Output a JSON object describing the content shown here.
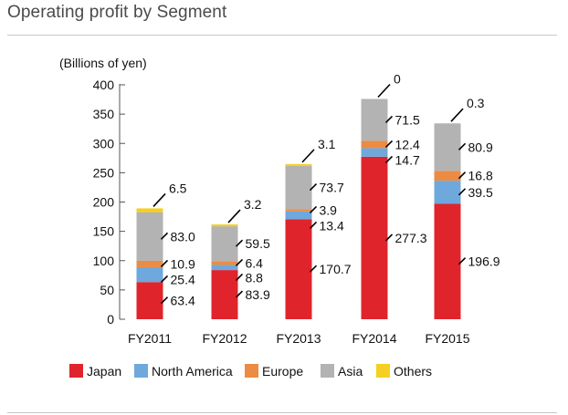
{
  "title": "Operating profit by Segment",
  "colors": {
    "Japan": "#e0242b",
    "North America": "#6fa8dc",
    "Europe": "#ec8b43",
    "Asia": "#b3b3b3",
    "Others": "#f5d020"
  },
  "chart_data": {
    "type": "bar",
    "stacked": true,
    "title": "Operating profit by Segment",
    "ylabel": "(Billions of yen)",
    "xlabel": "",
    "ylim": [
      0,
      400
    ],
    "yticks": [
      0,
      50,
      100,
      150,
      200,
      250,
      300,
      350,
      400
    ],
    "categories": [
      "FY2011",
      "FY2012",
      "FY2013",
      "FY2014",
      "FY2015"
    ],
    "series": [
      {
        "name": "Japan",
        "values": [
          63.4,
          83.9,
          170.7,
          277.3,
          196.9
        ]
      },
      {
        "name": "North America",
        "values": [
          25.4,
          8.8,
          13.4,
          14.7,
          39.5
        ]
      },
      {
        "name": "Europe",
        "values": [
          10.9,
          6.4,
          3.9,
          12.4,
          16.8
        ]
      },
      {
        "name": "Asia",
        "values": [
          83.0,
          59.5,
          73.7,
          71.5,
          80.9
        ]
      },
      {
        "name": "Others",
        "values": [
          6.5,
          3.2,
          3.1,
          0,
          0.3
        ]
      }
    ],
    "data_labels": [
      [
        "63.4",
        "25.4",
        "10.9",
        "83.0",
        "6.5"
      ],
      [
        "83.9",
        "8.8",
        "6.4",
        "59.5",
        "3.2"
      ],
      [
        "170.7",
        "13.4",
        "3.9",
        "73.7",
        "3.1"
      ],
      [
        "277.3",
        "14.7",
        "12.4",
        "71.5",
        "0"
      ],
      [
        "196.9",
        "39.5",
        "16.8",
        "80.9",
        "0.3"
      ]
    ],
    "legend": [
      "Japan",
      "North America",
      "Europe",
      "Asia",
      "Others"
    ],
    "legend_position": "bottom",
    "grid": false
  }
}
